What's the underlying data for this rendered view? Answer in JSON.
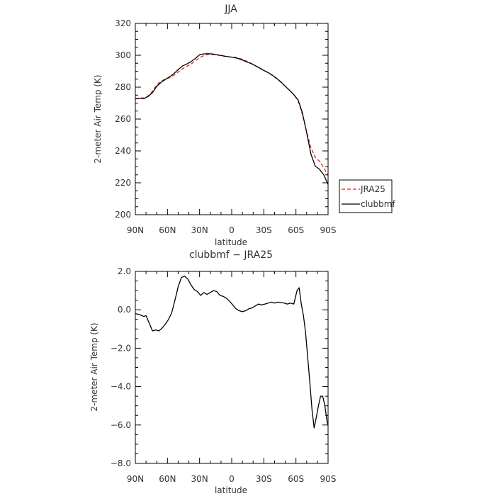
{
  "chart_data": [
    {
      "type": "line",
      "title": "JJA",
      "xlabel": "latitude",
      "ylabel": "2-meter Air Temp (K)",
      "x_ticks": [
        {
          "value": -90,
          "label": "90N"
        },
        {
          "value": -60,
          "label": "60N"
        },
        {
          "value": -30,
          "label": "30N"
        },
        {
          "value": 0,
          "label": "0"
        },
        {
          "value": 30,
          "label": "30S"
        },
        {
          "value": 60,
          "label": "60S"
        },
        {
          "value": 90,
          "label": "90S"
        }
      ],
      "xlim": [
        -90,
        90
      ],
      "ylim": [
        200,
        320
      ],
      "y_ticks": [
        200,
        220,
        240,
        260,
        280,
        300,
        320
      ],
      "y_tick_labels": [
        "200",
        "220",
        "240",
        "260",
        "280",
        "300",
        "320"
      ],
      "grid": false,
      "legend": {
        "placement": "right, outside plot",
        "entries": [
          "JRA25",
          "clubbmf"
        ]
      },
      "series": [
        {
          "name": "JRA25",
          "color": "#e8201a",
          "dash": "dashed",
          "x": [
            -90,
            -86,
            -82,
            -78,
            -74,
            -70,
            -66,
            -62,
            -58,
            -54,
            -50,
            -46,
            -42,
            -38,
            -34,
            -30,
            -26,
            -22,
            -18,
            -14,
            -10,
            -6,
            -2,
            2,
            6,
            10,
            14,
            18,
            22,
            26,
            30,
            34,
            38,
            42,
            46,
            50,
            54,
            58,
            62,
            66,
            70,
            74,
            78,
            82,
            86,
            90
          ],
          "y": [
            272.8,
            273.2,
            273.2,
            274.5,
            277.5,
            281.5,
            283.8,
            285.0,
            286.0,
            287.5,
            289.5,
            291.5,
            293.0,
            294.5,
            296.5,
            298.5,
            299.8,
            300.5,
            300.5,
            300.2,
            299.8,
            299.3,
            299.0,
            298.8,
            298.3,
            297.5,
            296.3,
            295.0,
            293.5,
            292.0,
            290.5,
            289.0,
            287.3,
            285.3,
            283.0,
            280.5,
            278.0,
            275.3,
            271.5,
            263.0,
            252.0,
            242.0,
            236.0,
            233.5,
            229.5,
            224.5
          ]
        },
        {
          "name": "clubbmf",
          "color": "#000000",
          "dash": "solid",
          "x": [
            -90,
            -86,
            -82,
            -78,
            -74,
            -70,
            -66,
            -62,
            -58,
            -54,
            -50,
            -46,
            -42,
            -38,
            -34,
            -30,
            -26,
            -22,
            -18,
            -14,
            -10,
            -6,
            -2,
            2,
            6,
            10,
            14,
            18,
            22,
            26,
            30,
            34,
            38,
            42,
            46,
            50,
            54,
            58,
            62,
            66,
            70,
            74,
            78,
            82,
            86,
            90
          ],
          "y": [
            272.6,
            273.0,
            272.8,
            274.2,
            276.5,
            280.5,
            283.0,
            284.8,
            286.5,
            288.5,
            291.0,
            293.3,
            294.5,
            296.0,
            298.0,
            300.3,
            300.9,
            301.0,
            300.8,
            300.4,
            299.9,
            299.4,
            299.0,
            298.6,
            298.0,
            297.0,
            295.8,
            294.8,
            293.5,
            292.0,
            290.5,
            289.2,
            287.5,
            285.5,
            283.3,
            280.6,
            278.0,
            275.3,
            272.0,
            264.0,
            251.5,
            238.0,
            230.5,
            228.5,
            225.0,
            219.0
          ]
        }
      ]
    },
    {
      "type": "line",
      "title": "clubbmf − JRA25",
      "xlabel": "latitude",
      "ylabel": "2-meter Air Temp (K)",
      "x_ticks": [
        {
          "value": -90,
          "label": "90N"
        },
        {
          "value": -60,
          "label": "60N"
        },
        {
          "value": -30,
          "label": "30N"
        },
        {
          "value": 0,
          "label": "0"
        },
        {
          "value": 30,
          "label": "30S"
        },
        {
          "value": 60,
          "label": "60S"
        },
        {
          "value": 90,
          "label": "90S"
        }
      ],
      "xlim": [
        -90,
        90
      ],
      "ylim": [
        -8,
        2
      ],
      "y_ticks": [
        -8,
        -6,
        -4,
        -2,
        0,
        2
      ],
      "y_tick_labels": [
        "−8.0",
        "−6.0",
        "−4.0",
        "−2.0",
        "0.0",
        "2.0"
      ],
      "grid": false,
      "series": [
        {
          "name": "clubbmf − JRA25",
          "color": "#000000",
          "dash": "solid",
          "x": [
            -90,
            -86,
            -82,
            -80,
            -77,
            -74,
            -71,
            -68,
            -65,
            -62,
            -59,
            -56,
            -53,
            -50,
            -47,
            -44,
            -41,
            -38,
            -35,
            -32,
            -29,
            -26,
            -23,
            -20,
            -17,
            -14,
            -11,
            -8,
            -5,
            -2,
            1,
            4,
            7,
            10,
            13,
            16,
            19,
            22,
            25,
            28,
            31,
            34,
            37,
            40,
            43,
            46,
            49,
            52,
            55,
            58,
            61,
            63,
            65,
            67,
            69,
            71,
            73,
            75,
            77,
            79,
            81,
            83,
            85,
            87,
            89,
            90
          ],
          "y": [
            -0.2,
            -0.25,
            -0.35,
            -0.3,
            -0.7,
            -1.1,
            -1.05,
            -1.1,
            -0.95,
            -0.75,
            -0.5,
            -0.15,
            0.5,
            1.2,
            1.68,
            1.75,
            1.6,
            1.3,
            1.05,
            0.95,
            0.75,
            0.9,
            0.8,
            0.9,
            1.0,
            0.95,
            0.75,
            0.7,
            0.6,
            0.45,
            0.25,
            0.05,
            -0.05,
            -0.1,
            -0.05,
            0.05,
            0.1,
            0.2,
            0.3,
            0.25,
            0.3,
            0.35,
            0.4,
            0.35,
            0.4,
            0.38,
            0.35,
            0.3,
            0.35,
            0.3,
            1.0,
            1.15,
            0.3,
            -0.3,
            -1.2,
            -2.5,
            -3.8,
            -5.2,
            -6.15,
            -5.6,
            -5.0,
            -4.5,
            -4.5,
            -5.0,
            -5.8,
            -6.0
          ]
        }
      ]
    }
  ]
}
